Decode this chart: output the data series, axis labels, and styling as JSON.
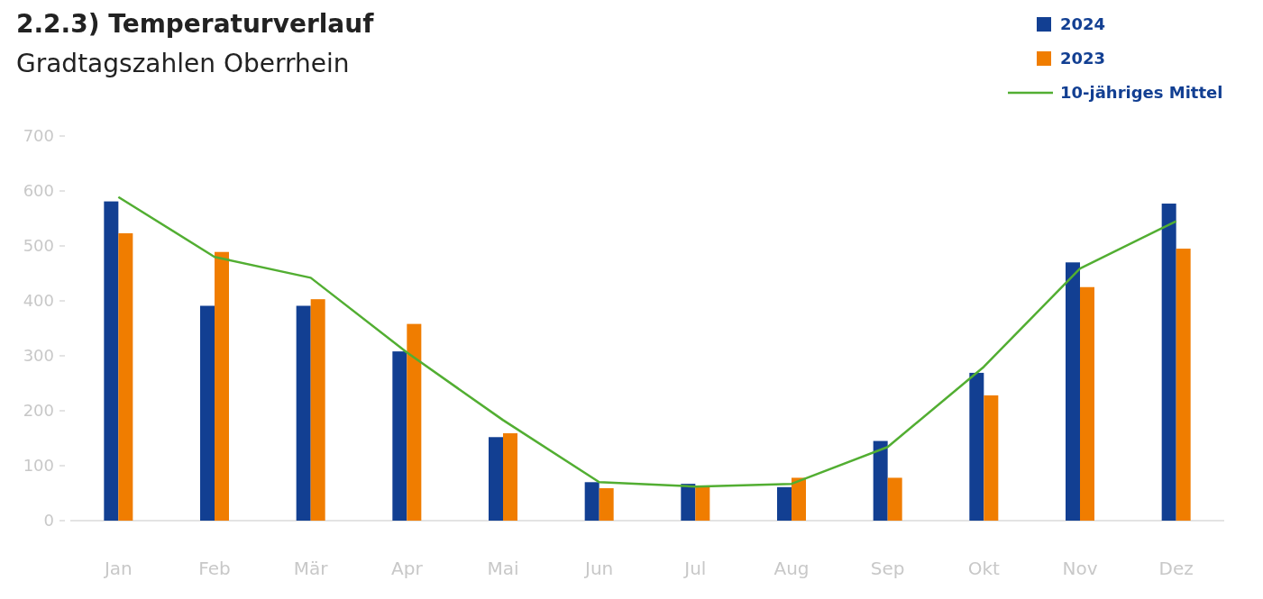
{
  "chart_data": {
    "type": "bar",
    "title": "2.2.3) Temperaturverlauf",
    "subtitle": "Gradtagszahlen Oberrhein",
    "categories": [
      "Jan",
      "Feb",
      "Mär",
      "Apr",
      "Mai",
      "Jun",
      "Jul",
      "Aug",
      "Sep",
      "Okt",
      "Nov",
      "Dez"
    ],
    "series": [
      {
        "name": "2024",
        "color": "#123f92",
        "values": [
          581,
          391,
          391,
          308,
          152,
          70,
          67,
          61,
          145,
          269,
          470,
          577
        ]
      },
      {
        "name": "2023",
        "color": "#f07d00",
        "values": [
          523,
          489,
          403,
          358,
          159,
          59,
          62,
          78,
          78,
          228,
          425,
          495
        ]
      },
      {
        "name": "10-jähriges Mittel",
        "type": "line",
        "color": "#52ae32",
        "values": [
          589,
          480,
          442,
          306,
          183,
          70,
          62,
          67,
          134,
          280,
          459,
          545
        ]
      }
    ],
    "ylim": [
      0,
      700
    ],
    "yticks": [
      0,
      100,
      200,
      300,
      400,
      500,
      600,
      700
    ],
    "grid": false,
    "legend": "top right"
  }
}
